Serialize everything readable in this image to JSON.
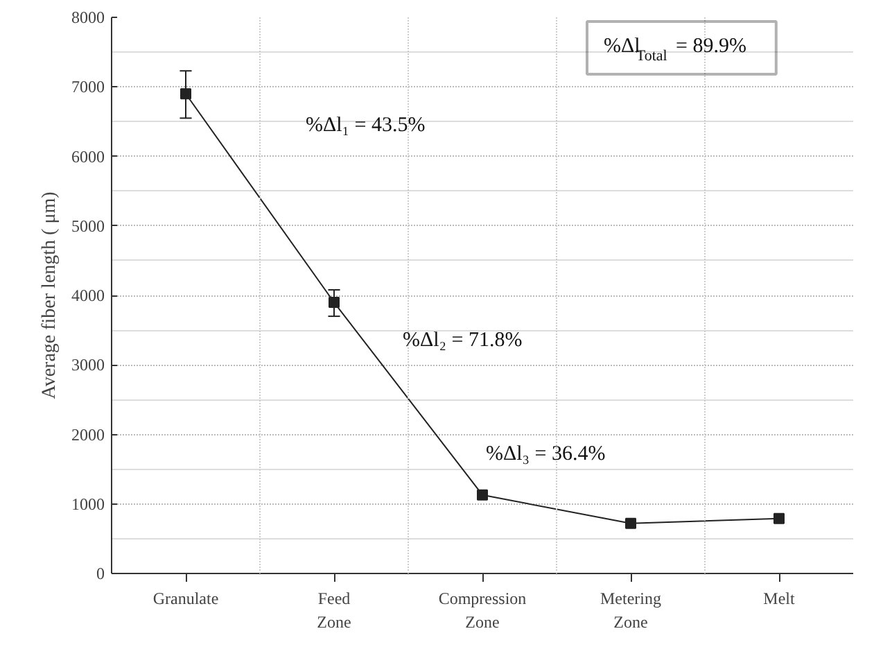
{
  "chart_data": {
    "type": "line",
    "ylabel": "Average fiber length ( μm)",
    "categories": [
      "Granulate",
      "Feed\nZone",
      "Compression\nZone",
      "Metering\nZone",
      "Melt"
    ],
    "series": [
      {
        "color": "#222222",
        "values": [
          6900,
          3900,
          1130,
          720,
          790
        ],
        "errors": [
          [
            6550,
            7230
          ],
          [
            3700,
            4080
          ],
          null,
          null,
          null
        ]
      }
    ],
    "ylim": [
      0,
      8000
    ],
    "yticks": [
      0,
      1000,
      2000,
      3000,
      4000,
      5000,
      6000,
      7000,
      8000
    ],
    "grid": true,
    "marker": "square",
    "line_style": "solid",
    "annotations": [
      "%Δl₁ = 43.5%",
      "%Δl₂ = 71.8%",
      "%Δl₃ = 36.4%",
      "%Δl$_{Total}$ = 89.9%"
    ]
  }
}
